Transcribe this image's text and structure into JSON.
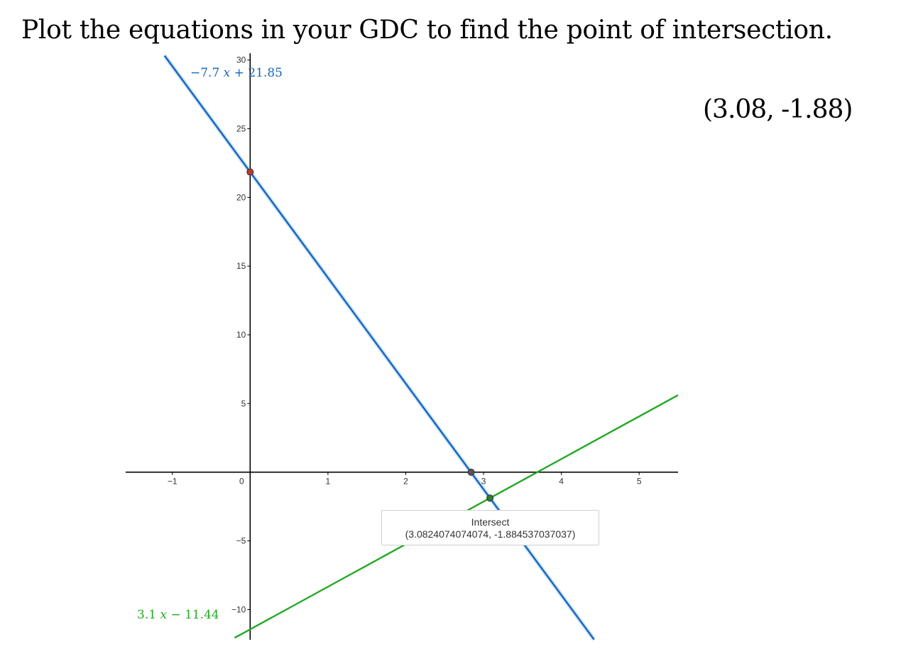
{
  "question": "Plot the equations in your GDC to find the point of intersection.",
  "answer": "(3.08, -1.88)",
  "tooltip": {
    "title": "Intersect",
    "coords": "(3.0824074074074, -1.884537037037)"
  },
  "chart_data": {
    "type": "line",
    "title": "",
    "xlabel": "",
    "ylabel": "",
    "xlim": [
      -1.6,
      5.5
    ],
    "ylim": [
      -12.2,
      30.5
    ],
    "x_ticks": [
      -1,
      0,
      1,
      2,
      3,
      4,
      5
    ],
    "x_tick_labels": [
      "−1",
      "0",
      "1",
      "2",
      "3",
      "4",
      "5"
    ],
    "y_ticks": [
      -10,
      -5,
      5,
      10,
      15,
      20,
      25,
      30
    ],
    "y_tick_labels": [
      "−10",
      "−5",
      "5",
      "10",
      "15",
      "20",
      "25",
      "30"
    ],
    "grid": false,
    "series": [
      {
        "name": "−7.7 𝑥 + 21.85",
        "slope": -7.7,
        "intercept": 21.85,
        "color": "#1565c0",
        "x": [
          -1.1,
          4.42
        ],
        "y": [
          30.32,
          -12.18
        ]
      },
      {
        "name": "3.1 𝑥 − 11.44",
        "slope": 3.1,
        "intercept": -11.44,
        "color": "#22a822",
        "x": [
          -0.2,
          5.5
        ],
        "y": [
          -12.06,
          5.61
        ]
      }
    ],
    "points": [
      {
        "x": 0,
        "y": 21.85,
        "color": "#c0392b"
      },
      {
        "x": 2.84,
        "y": 0,
        "color": "#555555"
      },
      {
        "x": 3.0824,
        "y": -1.8845,
        "color": "#2e7d32"
      }
    ]
  }
}
